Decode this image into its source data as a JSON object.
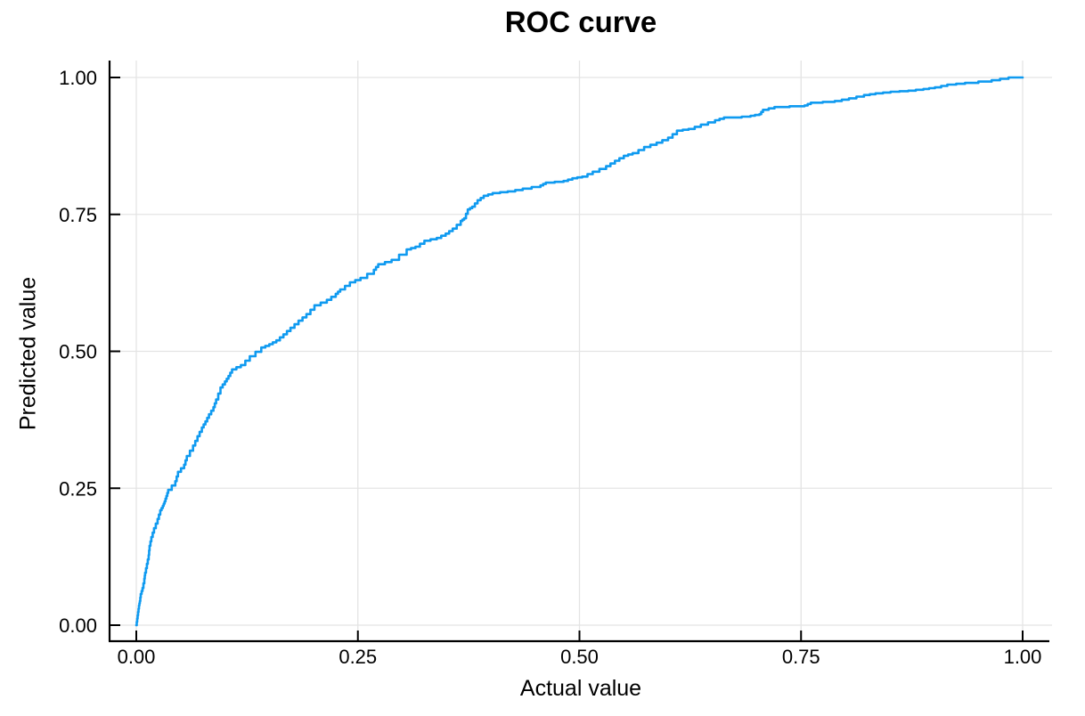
{
  "colors": {
    "curve": "#0f9af0",
    "grid": "#e4e4e4",
    "axis": "#000000",
    "background": "#ffffff"
  },
  "chart_data": {
    "type": "line",
    "subtype": "roc-step-curve",
    "title": "ROC curve",
    "xlabel": "Actual value",
    "ylabel": "Predicted value",
    "xlim": [
      0,
      1
    ],
    "ylim": [
      0,
      1
    ],
    "grid": true,
    "legend": "none",
    "xtick_values": [
      0,
      0.25,
      0.5,
      0.75,
      1
    ],
    "xtick_labels": [
      "0.00",
      "0.25",
      "0.50",
      "0.75",
      "1.00"
    ],
    "ytick_values": [
      0,
      0.25,
      0.5,
      0.75,
      1
    ],
    "ytick_labels": [
      "0.00",
      "0.25",
      "0.50",
      "0.75",
      "1.00"
    ],
    "series": [
      {
        "name": "ROC curve",
        "color": "#0f9af0",
        "points": [
          [
            0.0,
            0.0
          ],
          [
            0.001,
            0.012
          ],
          [
            0.002,
            0.024
          ],
          [
            0.003,
            0.036
          ],
          [
            0.004,
            0.044
          ],
          [
            0.005,
            0.057
          ],
          [
            0.007,
            0.068
          ],
          [
            0.009,
            0.085
          ],
          [
            0.01,
            0.096
          ],
          [
            0.012,
            0.112
          ],
          [
            0.014,
            0.128
          ],
          [
            0.015,
            0.145
          ],
          [
            0.017,
            0.161
          ],
          [
            0.02,
            0.177
          ],
          [
            0.024,
            0.194
          ],
          [
            0.027,
            0.21
          ],
          [
            0.03,
            0.218
          ],
          [
            0.032,
            0.226
          ],
          [
            0.034,
            0.236
          ],
          [
            0.036,
            0.247
          ],
          [
            0.044,
            0.263
          ],
          [
            0.047,
            0.28
          ],
          [
            0.054,
            0.293
          ],
          [
            0.057,
            0.309
          ],
          [
            0.064,
            0.328
          ],
          [
            0.069,
            0.345
          ],
          [
            0.074,
            0.361
          ],
          [
            0.078,
            0.372
          ],
          [
            0.082,
            0.385
          ],
          [
            0.087,
            0.398
          ],
          [
            0.09,
            0.412
          ],
          [
            0.095,
            0.434
          ],
          [
            0.1,
            0.445
          ],
          [
            0.104,
            0.455
          ],
          [
            0.108,
            0.467
          ],
          [
            0.118,
            0.475
          ],
          [
            0.128,
            0.491
          ],
          [
            0.141,
            0.507
          ],
          [
            0.15,
            0.513
          ],
          [
            0.158,
            0.52
          ],
          [
            0.166,
            0.531
          ],
          [
            0.174,
            0.543
          ],
          [
            0.183,
            0.556
          ],
          [
            0.192,
            0.568
          ],
          [
            0.201,
            0.584
          ],
          [
            0.215,
            0.594
          ],
          [
            0.225,
            0.605
          ],
          [
            0.23,
            0.613
          ],
          [
            0.241,
            0.626
          ],
          [
            0.253,
            0.634
          ],
          [
            0.268,
            0.649
          ],
          [
            0.273,
            0.659
          ],
          [
            0.288,
            0.667
          ],
          [
            0.305,
            0.686
          ],
          [
            0.315,
            0.691
          ],
          [
            0.325,
            0.702
          ],
          [
            0.339,
            0.707
          ],
          [
            0.349,
            0.715
          ],
          [
            0.357,
            0.724
          ],
          [
            0.366,
            0.738
          ],
          [
            0.37,
            0.743
          ],
          [
            0.374,
            0.759
          ],
          [
            0.379,
            0.764
          ],
          [
            0.385,
            0.776
          ],
          [
            0.392,
            0.784
          ],
          [
            0.402,
            0.789
          ],
          [
            0.419,
            0.792
          ],
          [
            0.436,
            0.797
          ],
          [
            0.456,
            0.803
          ],
          [
            0.462,
            0.808
          ],
          [
            0.482,
            0.811
          ],
          [
            0.492,
            0.816
          ],
          [
            0.503,
            0.819
          ],
          [
            0.515,
            0.828
          ],
          [
            0.53,
            0.838
          ],
          [
            0.54,
            0.848
          ],
          [
            0.55,
            0.857
          ],
          [
            0.56,
            0.862
          ],
          [
            0.573,
            0.873
          ],
          [
            0.587,
            0.881
          ],
          [
            0.6,
            0.89
          ],
          [
            0.61,
            0.903
          ],
          [
            0.623,
            0.906
          ],
          [
            0.637,
            0.914
          ],
          [
            0.653,
            0.922
          ],
          [
            0.663,
            0.927
          ],
          [
            0.673,
            0.927
          ],
          [
            0.693,
            0.93
          ],
          [
            0.703,
            0.933
          ],
          [
            0.707,
            0.941
          ],
          [
            0.72,
            0.946
          ],
          [
            0.754,
            0.949
          ],
          [
            0.761,
            0.954
          ],
          [
            0.788,
            0.957
          ],
          [
            0.804,
            0.962
          ],
          [
            0.821,
            0.968
          ],
          [
            0.834,
            0.971
          ],
          [
            0.851,
            0.974
          ],
          [
            0.871,
            0.976
          ],
          [
            0.888,
            0.979
          ],
          [
            0.901,
            0.982
          ],
          [
            0.915,
            0.987
          ],
          [
            0.935,
            0.99
          ],
          [
            0.965,
            0.995
          ],
          [
            0.984,
            1.0
          ],
          [
            1.0,
            1.0
          ]
        ]
      }
    ]
  }
}
